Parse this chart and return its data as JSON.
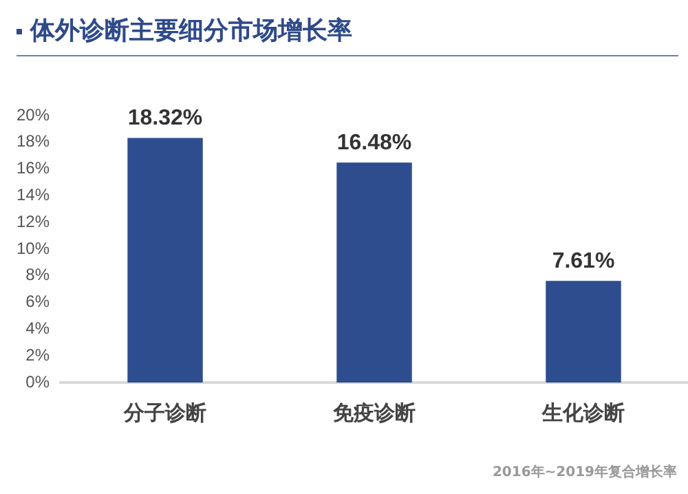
{
  "chart_data": {
    "type": "bar",
    "title": "体外诊断主要细分市场增长率",
    "categories": [
      "分子诊断",
      "免疫诊断",
      "生化诊断"
    ],
    "values": [
      18.32,
      16.48,
      7.61
    ],
    "value_labels": [
      "18.32%",
      "16.48%",
      "7.61%"
    ],
    "color": "#2e4d8f",
    "ylim": [
      0,
      20
    ],
    "yticks": [
      {
        "value": 0,
        "label": "0%"
      },
      {
        "value": 2,
        "label": "2%"
      },
      {
        "value": 4,
        "label": "4%"
      },
      {
        "value": 6,
        "label": "6%"
      },
      {
        "value": 8,
        "label": "8%"
      },
      {
        "value": 10,
        "label": "10%"
      },
      {
        "value": 12,
        "label": "12%"
      },
      {
        "value": 14,
        "label": "14%"
      },
      {
        "value": 16,
        "label": "16%"
      },
      {
        "value": 18,
        "label": "18%"
      },
      {
        "value": 20,
        "label": "20%"
      }
    ],
    "grid": false,
    "legend": false,
    "annotations": [
      "2016年~2019年复合增长率"
    ]
  }
}
